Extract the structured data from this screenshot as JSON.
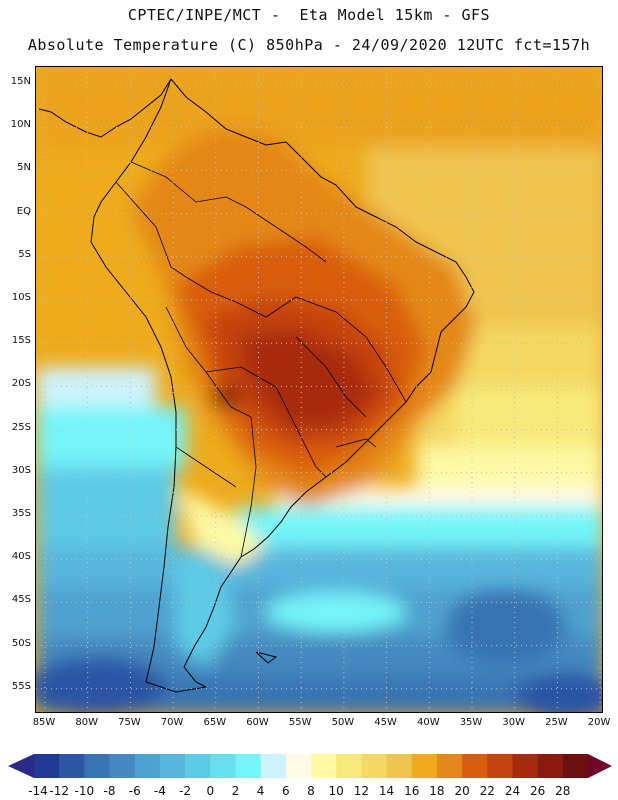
{
  "title": {
    "line1": "CPTEC/INPE/MCT -  Eta Model 15km - GFS",
    "line2": "Absolute Temperature (C) 850hPa - 24/09/2020 12UTC fct=157h"
  },
  "axes": {
    "lat_labels": [
      "15N",
      "10N",
      "5N",
      "EQ",
      "5S",
      "10S",
      "15S",
      "20S",
      "25S",
      "30S",
      "35S",
      "40S",
      "45S",
      "50S",
      "55S"
    ],
    "lon_labels": [
      "85W",
      "80W",
      "75W",
      "70W",
      "65W",
      "60W",
      "55W",
      "50W",
      "45W",
      "40W",
      "35W",
      "30W",
      "25W",
      "20W"
    ]
  },
  "colorbar": {
    "levels": [
      "-14",
      "-12",
      "-10",
      "-8",
      "-6",
      "-4",
      "-2",
      "0",
      "2",
      "4",
      "6",
      "8",
      "10",
      "12",
      "14",
      "16",
      "18",
      "20",
      "22",
      "24",
      "26",
      "28"
    ],
    "colors": [
      "#203a93",
      "#2c55a4",
      "#3873b3",
      "#4589c0",
      "#4fa1cf",
      "#58b6dd",
      "#5dcbe6",
      "#66e0ef",
      "#74f5f9",
      "#cdf3fd",
      "#fffae6",
      "#fdf9a4",
      "#f8ea7a",
      "#f4d862",
      "#f0c54f",
      "#eeab1c",
      "#e48719",
      "#d95d0e",
      "#c54310",
      "#a82a0e",
      "#8b1a10",
      "#6b1010"
    ],
    "low_color": "#2a2a8a",
    "high_color": "#700528"
  }
}
